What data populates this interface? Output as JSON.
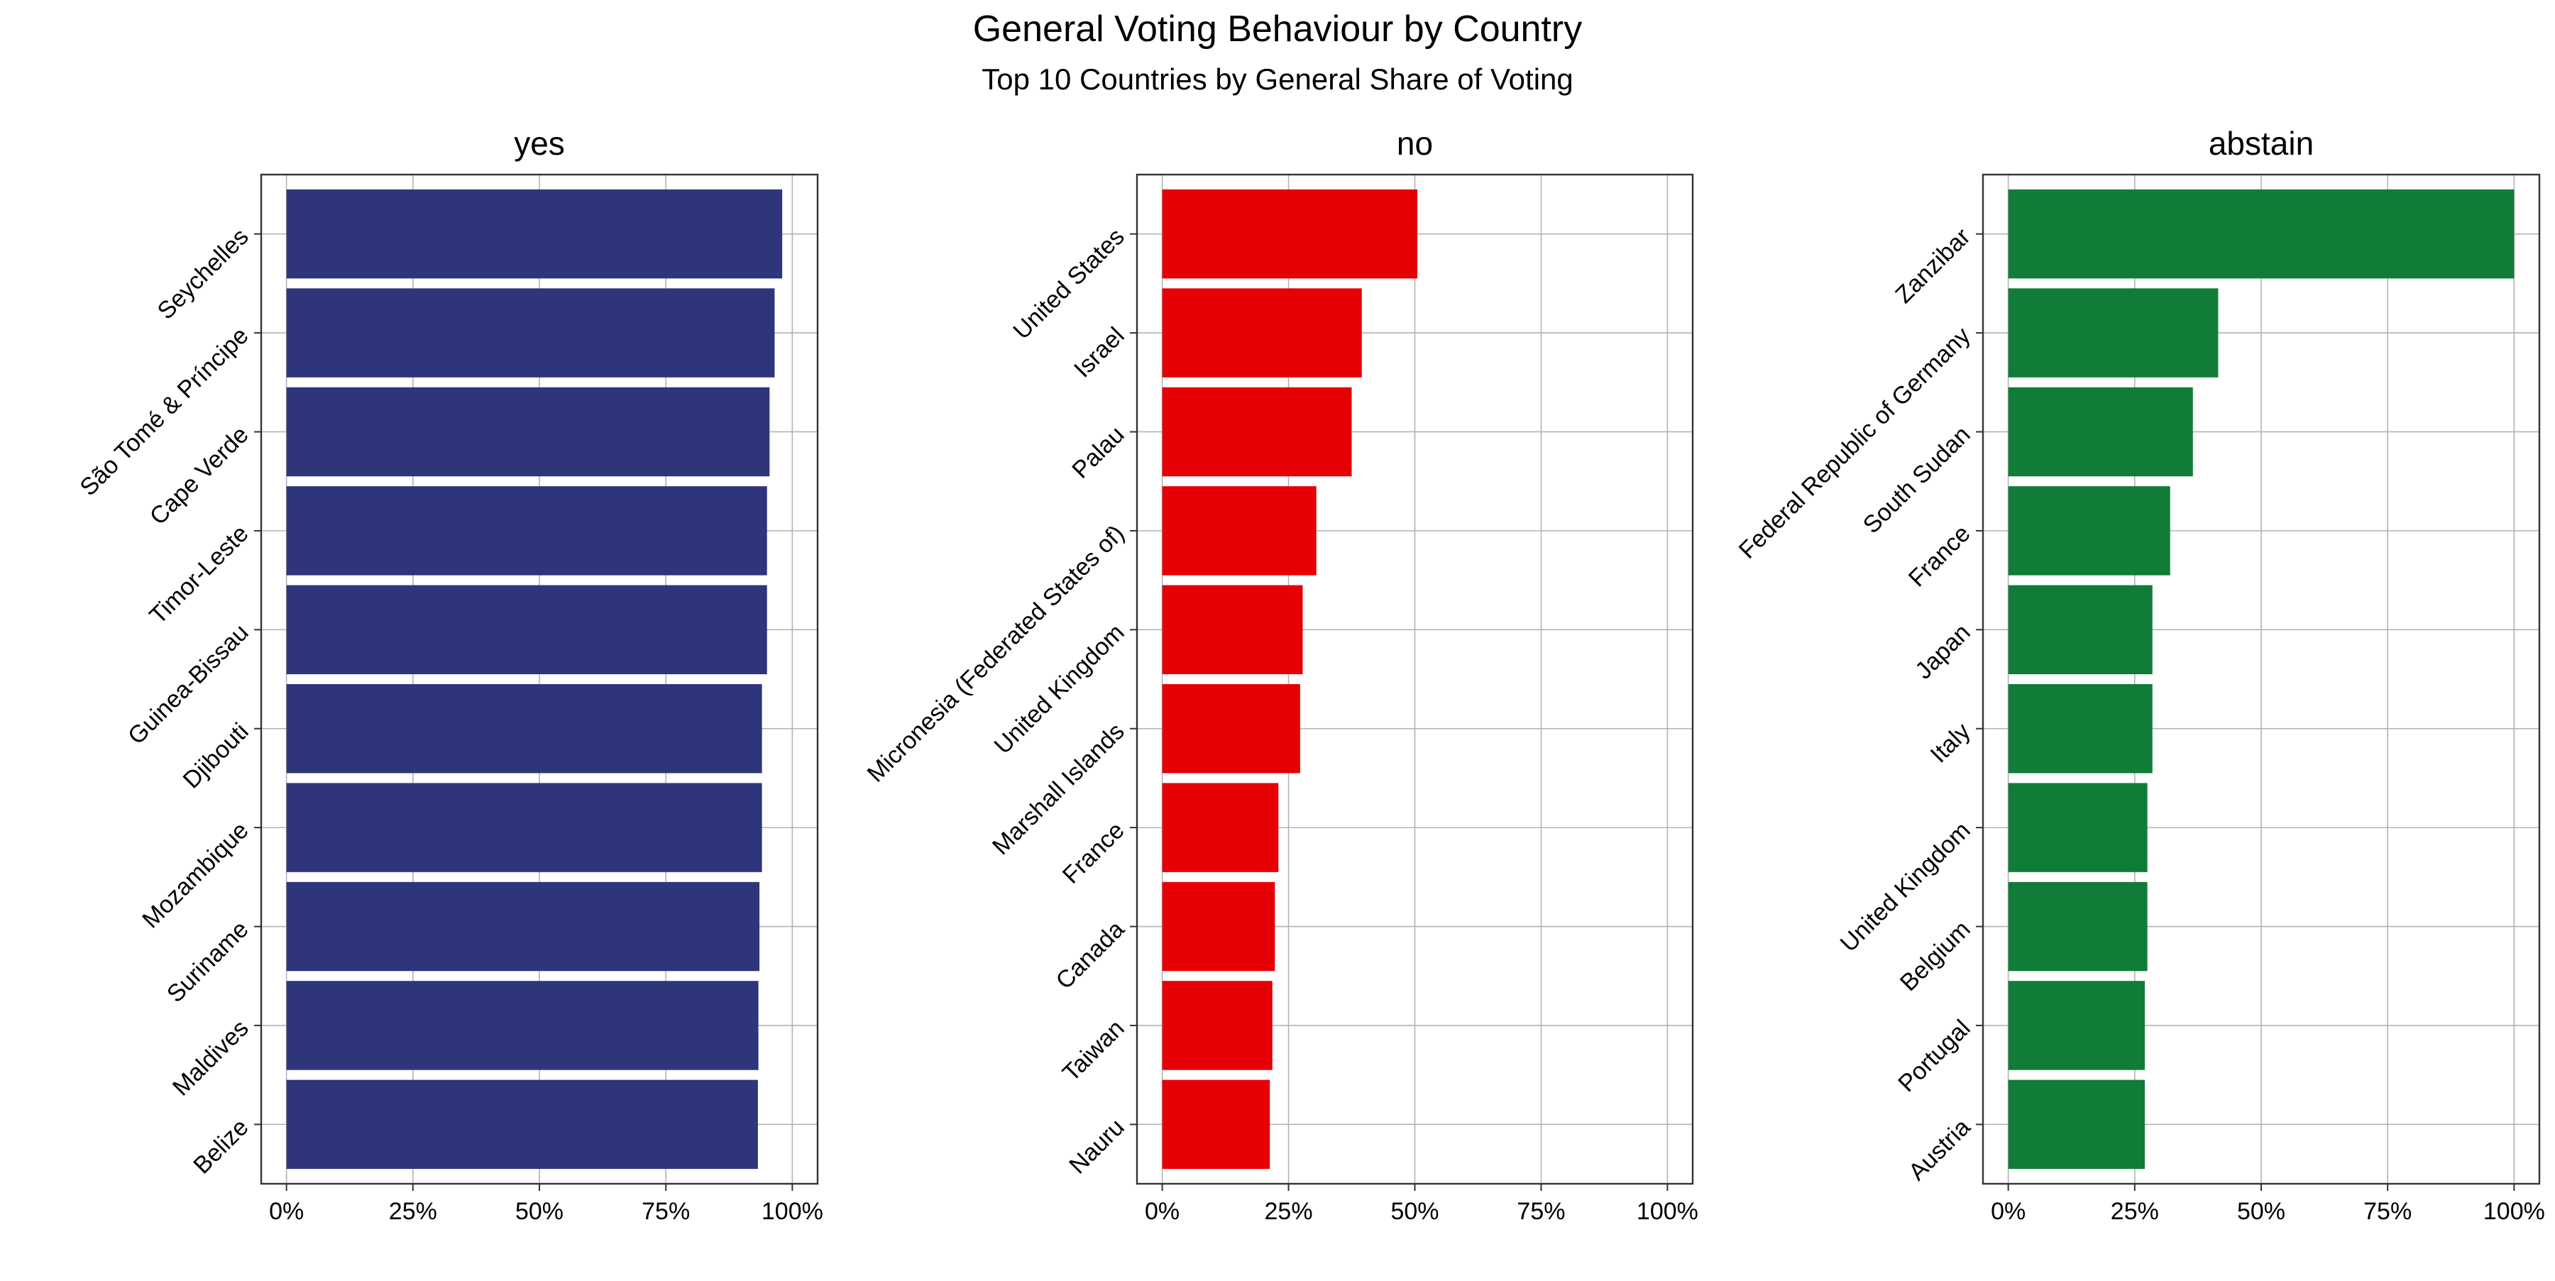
{
  "chart_data": {
    "type": "bar",
    "orientation": "horizontal",
    "title": "General Voting Behaviour by Country",
    "subtitle": "Top 10 Countries by General Share of Voting",
    "x_ticks": [
      "0%",
      "25%",
      "50%",
      "75%",
      "100%"
    ],
    "xlim": [
      0,
      100
    ],
    "grid": true,
    "panels": [
      {
        "name": "yes",
        "color": "#2e357b",
        "categories": [
          "Seychelles",
          "São Tomé & Príncipe",
          "Cape Verde",
          "Timor-Leste",
          "Guinea-Bissau",
          "Djibouti",
          "Mozambique",
          "Suriname",
          "Maldives",
          "Belize"
        ],
        "values": [
          98,
          96.5,
          95.5,
          95,
          95,
          94,
          94,
          93.5,
          93.3,
          93.2
        ]
      },
      {
        "name": "no",
        "color": "#e60005",
        "categories": [
          "United States",
          "Israel",
          "Palau",
          "Micronesia (Federated States of)",
          "United Kingdom",
          "Marshall Islands",
          "France",
          "Canada",
          "Taiwan",
          "Nauru"
        ],
        "values": [
          50.5,
          39.5,
          37.5,
          30.5,
          27.8,
          27.3,
          23,
          22.3,
          21.8,
          21.3
        ]
      },
      {
        "name": "abstain",
        "color": "#107c37",
        "categories": [
          "Zanzibar",
          "Federal Republic of Germany",
          "South Sudan",
          "France",
          "Japan",
          "Italy",
          "United Kingdom",
          "Belgium",
          "Portugal",
          "Austria"
        ],
        "values": [
          100,
          41.5,
          36.5,
          32,
          28.5,
          28.5,
          27.5,
          27.5,
          27,
          27
        ]
      }
    ]
  }
}
